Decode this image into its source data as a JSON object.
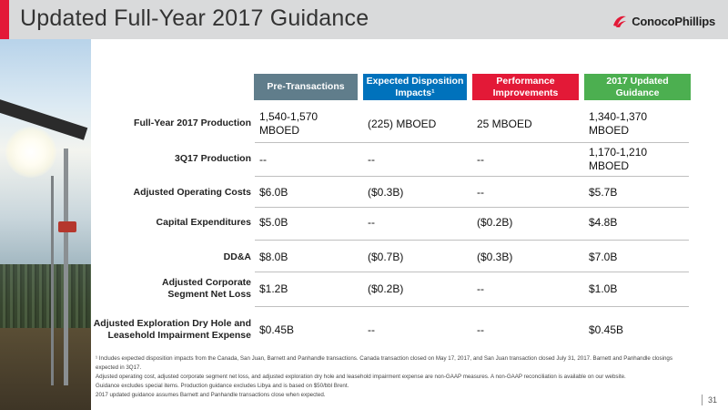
{
  "header": {
    "title": "Updated Full-Year 2017 Guidance",
    "logo_text": "ConocoPhillips",
    "accent_color": "#e31937"
  },
  "table": {
    "columns": [
      {
        "label": "Pre-Transactions",
        "color": "#607d8b"
      },
      {
        "label": "Expected Disposition Impacts¹",
        "color": "#0072bc"
      },
      {
        "label": "Performance Improvements",
        "color": "#e31937"
      },
      {
        "label": "2017 Updated Guidance",
        "color": "#4caf50"
      }
    ],
    "rows": [
      {
        "label": "Full-Year 2017 Production",
        "values": [
          "1,540-1,570 MBOED",
          "(225) MBOED",
          "25 MBOED",
          "1,340-1,370 MBOED"
        ]
      },
      {
        "label": "3Q17 Production",
        "values": [
          "--",
          "--",
          "--",
          "1,170-1,210 MBOED"
        ]
      },
      {
        "label": "Adjusted Operating Costs",
        "values": [
          "$6.0B",
          "($0.3B)",
          "--",
          "$5.7B"
        ]
      },
      {
        "label": "Capital Expenditures",
        "values": [
          "$5.0B",
          "--",
          "($0.2B)",
          "$4.8B"
        ]
      },
      {
        "label": "DD&A",
        "values": [
          "$8.0B",
          "($0.7B)",
          "($0.3B)",
          "$7.0B"
        ]
      },
      {
        "label": "Adjusted Corporate Segment Net Loss",
        "values": [
          "$1.2B",
          "($0.2B)",
          "--",
          "$1.0B"
        ]
      },
      {
        "label": "Adjusted Exploration Dry Hole and Leasehold Impairment Expense",
        "values": [
          "$0.45B",
          "--",
          "--",
          "$0.45B"
        ]
      }
    ]
  },
  "footnotes": [
    "¹ Includes expected disposition impacts from the Canada, San Juan, Barnett and Panhandle transactions. Canada transaction closed on May 17, 2017, and San Juan transaction closed July 31, 2017. Barnett and Panhandle closings expected in 3Q17.",
    "Adjusted operating cost, adjusted corporate segment net loss, and adjusted exploration dry hole and leasehold impairment expense are non-GAAP measures. A non-GAAP reconciliation is available on our website.",
    "Guidance excludes special items. Production guidance excludes Libya and is based on $50/bbl Brent.",
    "2017 updated guidance assumes Barnett and Panhandle transactions close when expected."
  ],
  "page_number": "31"
}
